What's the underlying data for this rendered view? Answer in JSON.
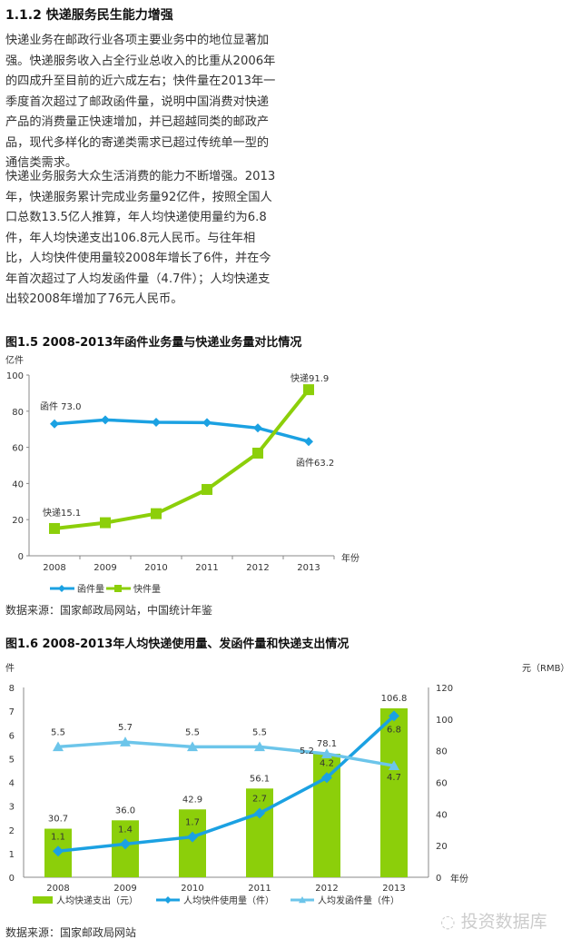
{
  "heading": "1.1.2 快递服务民生能力增强",
  "paragraphs": [
    "快递业务在邮政行业各项主要业务中的地位显著加强。快递服务收入占全行业总收入的比重从2006年的四成升至目前的近六成左右；快件量在2013年一季度首次超过了邮政函件量，说明中国消费对快递产品的消费量正快速增加，并已超越同类的邮政产品，现代多样化的寄递类需求已超过传统单一型的通信类需求。",
    "快递业务服务大众生活消费的能力不断增强。2013年，快递服务累计完成业务量92亿件，按照全国人口总数13.5亿人推算，年人均快递使用量约为6.8件，年人均快递支出106.8元人民币。与往年相比，人均快件使用量较2008年增长了6件，并在今年首次超过了人均发函件量（4.7件）；人均快递支出较2008年增加了76元人民币。"
  ],
  "watermark": "投资数据库",
  "chart_data": [
    {
      "type": "line",
      "title": "图1.5  2008-2013年函件业务量与快递业务量对比情况",
      "ylabel": "亿件",
      "xlabel": "年份",
      "ylim": [
        0,
        100
      ],
      "yticks": [
        "0",
        "20",
        "40",
        "60",
        "80",
        "100"
      ],
      "categories": [
        "2008",
        "2009",
        "2010",
        "2011",
        "2012",
        "2013"
      ],
      "series": [
        {
          "name": "函件量",
          "color": "#1ba1e2",
          "values": [
            73.0,
            75.2,
            73.9,
            73.7,
            70.7,
            63.2
          ]
        },
        {
          "name": "快件量",
          "color": "#8ccf0a",
          "values": [
            15.1,
            18.3,
            23.3,
            36.7,
            56.8,
            91.9
          ]
        }
      ],
      "annotations": [
        "函件 73.0",
        "函件63.2",
        "快递15.1",
        "快递91.9"
      ],
      "source": "数据来源：国家邮政局网站，中国统计年鉴",
      "legend": "bottom"
    },
    {
      "type": "bar+line",
      "title": "图1.6  2008-2013年人均快递使用量、发函件量和快递支出情况",
      "ylabel": "件",
      "y2label": "元（RMB）",
      "xlabel": "年份",
      "ylim": [
        0,
        8
      ],
      "y2lim": [
        0,
        120
      ],
      "yticks": [
        "0",
        "1",
        "2",
        "3",
        "4",
        "5",
        "6",
        "7",
        "8"
      ],
      "y2ticks": [
        "0",
        "20",
        "40",
        "60",
        "80",
        "100",
        "120"
      ],
      "categories": [
        "2008",
        "2009",
        "2010",
        "2011",
        "2012",
        "2013"
      ],
      "series": [
        {
          "name": "人均快递支出（元）",
          "color": "#8ccf0a",
          "values": [
            30.7,
            36.0,
            42.9,
            56.1,
            78.1,
            106.8
          ],
          "labels": [
            "30.7",
            "36.0",
            "42.9",
            "56.1",
            "78.1",
            "106.8"
          ]
        },
        {
          "name": "人均快件使用量（件）",
          "color": "#1ba1e2",
          "values": [
            1.1,
            1.4,
            1.7,
            2.7,
            4.2,
            6.8
          ],
          "labels": [
            "1.1",
            "1.4",
            "1.7",
            "2.7",
            "4.2",
            "6.8"
          ]
        },
        {
          "name": "人均发函件量（件）",
          "color": "#6cc5ea",
          "values": [
            5.5,
            5.7,
            5.5,
            5.5,
            5.2,
            4.7
          ],
          "labels": [
            "5.5",
            "5.7",
            "5.5",
            "5.5",
            "5.2",
            "4.7"
          ]
        }
      ],
      "source": "数据来源：国家邮政局网站",
      "legend": "bottom"
    }
  ]
}
